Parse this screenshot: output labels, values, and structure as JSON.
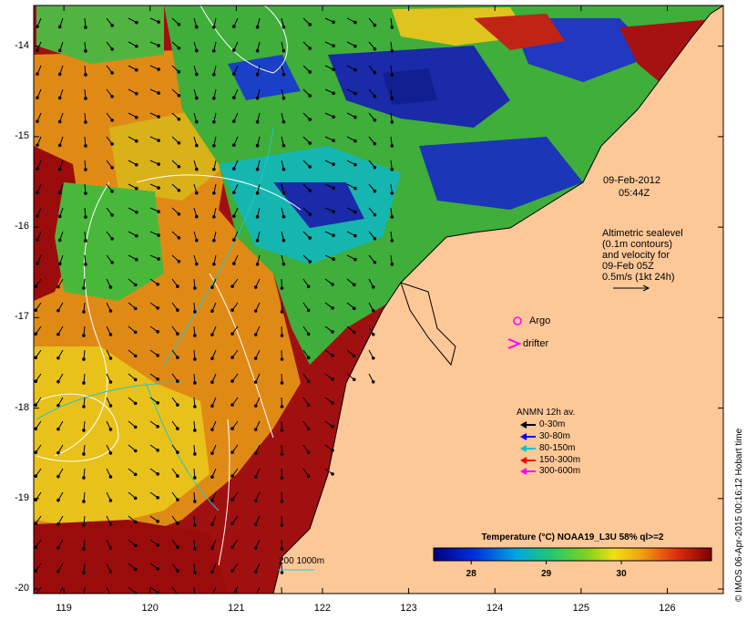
{
  "map": {
    "lat_ticks": [
      "-14",
      "-15",
      "-16",
      "-17",
      "-18",
      "-19",
      "-20"
    ],
    "lon_ticks": [
      "119",
      "120",
      "121",
      "122",
      "123",
      "124",
      "125",
      "126"
    ],
    "lat_range": [
      -20.05,
      -13.55
    ],
    "lon_range": [
      118.65,
      126.65
    ]
  },
  "timestamp": {
    "date": "09-Feb-2012",
    "time": "05:44Z"
  },
  "altimetry_note": {
    "line1": "Altimetric sealevel",
    "line2": "(0.1m contours)",
    "line3": "and velocity for",
    "line4": "09-Feb 05Z",
    "line5": "0.5m/s (1kt 24h)"
  },
  "markers": {
    "argo": "Argo",
    "drifter": "drifter"
  },
  "anmn_legend": {
    "title": "ANMN 12h av.",
    "items": [
      {
        "label": "0-30m",
        "color": "#000000"
      },
      {
        "label": "30-80m",
        "color": "#0000ff"
      },
      {
        "label": "80-150m",
        "color": "#00c8c8"
      },
      {
        "label": "150-300m",
        "color": "#ff0000"
      },
      {
        "label": "300-600m",
        "color": "#ff00ff"
      }
    ]
  },
  "depth_scale": {
    "label": "200  1000m"
  },
  "colorbar": {
    "title": "Temperature (°C) NOAA19_L3U 58% ql>=2",
    "ticks": [
      "28",
      "29",
      "30"
    ],
    "tick_values": [
      28,
      29,
      30
    ],
    "range": [
      27.5,
      31.2
    ]
  },
  "credit": "© IMOS 06-Apr-2015 00:16:12 Hobart time",
  "colors": {
    "land": "#fdc898",
    "warm": "#9e0a0a",
    "cool": "#1a2aa8"
  }
}
